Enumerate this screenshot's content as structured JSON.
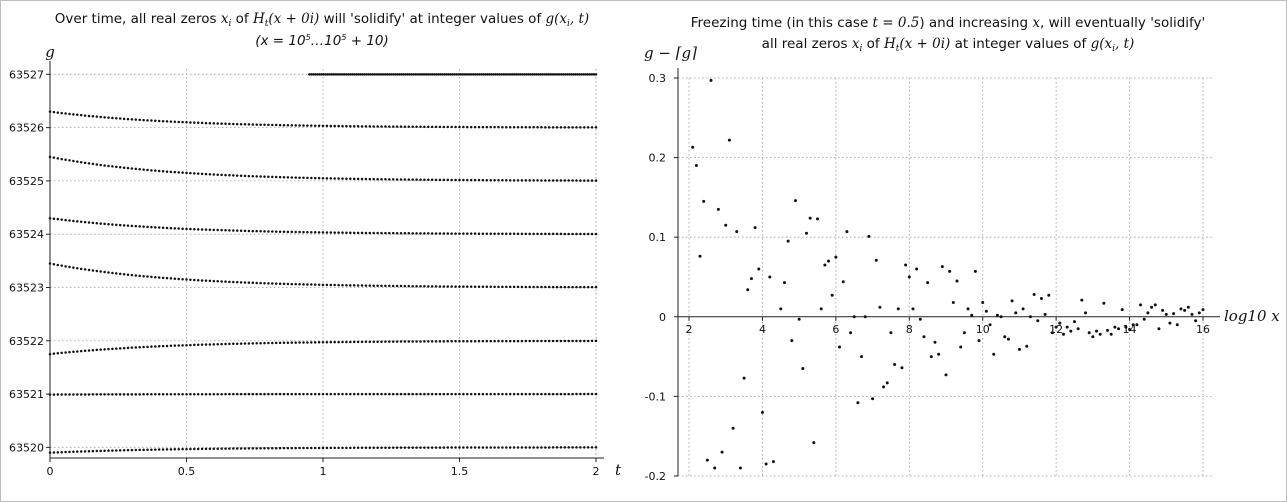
{
  "chart_data": [
    {
      "type": "scatter",
      "title": "Over time, all real zeros x_i of H_t(x+0i) will 'solidify' at integer values of g(x_i,t)",
      "subtitle": "(x = 10^5 ... 10^5 + 10)",
      "xlabel": "t",
      "ylabel": "g",
      "xlim": [
        0,
        2
      ],
      "ylim": [
        63519.8,
        63527.1
      ],
      "xticks": [
        "0",
        "0.5",
        "1",
        "1.5",
        "2"
      ],
      "yticks": [
        "63520",
        "63521",
        "63522",
        "63523",
        "63524",
        "63525",
        "63526",
        "63527"
      ],
      "grid": true,
      "series": [
        {
          "start": 63519.9,
          "end": 63520.0,
          "t_start": 0,
          "t_end": 2
        },
        {
          "start": 63520.99,
          "end": 63521.0,
          "t_start": 0,
          "t_end": 2
        },
        {
          "start": 63521.75,
          "end": 63522.0,
          "t_start": 0,
          "t_end": 2
        },
        {
          "start": 63523.45,
          "end": 63523.0,
          "t_start": 0,
          "t_end": 2
        },
        {
          "start": 63524.3,
          "end": 63524.0,
          "t_start": 0,
          "t_end": 2
        },
        {
          "start": 63525.45,
          "end": 63525.0,
          "t_start": 0,
          "t_end": 2
        },
        {
          "start": 63526.3,
          "end": 63526.0,
          "t_start": 0,
          "t_end": 2
        },
        {
          "start": 63527.0,
          "end": 63527.0,
          "t_start": 0.95,
          "t_end": 2
        }
      ]
    },
    {
      "type": "scatter",
      "title": "Freezing time (in this case t = 0.5) and increasing x, will eventually 'solidify'",
      "subtitle": "all real zeros x_i of H_t(x+0i) at integer values of g(x_i,t)",
      "xlabel": "log10 x",
      "ylabel": "g − ⌈g⌉",
      "xlim": [
        1.7,
        16.3
      ],
      "ylim": [
        -0.2,
        0.3
      ],
      "xticks": [
        "2",
        "4",
        "6",
        "8",
        "10",
        "12",
        "14",
        "16"
      ],
      "yticks": [
        "0.3",
        "0.2",
        "0.1",
        "0",
        "-0.1",
        "-0.2"
      ],
      "grid": true,
      "points": [
        [
          2.1,
          0.213
        ],
        [
          2.2,
          0.19
        ],
        [
          2.3,
          0.076
        ],
        [
          2.4,
          0.145
        ],
        [
          2.5,
          -0.18
        ],
        [
          2.6,
          0.297
        ],
        [
          2.7,
          -0.19
        ],
        [
          2.8,
          0.135
        ],
        [
          2.9,
          -0.17
        ],
        [
          3.0,
          0.115
        ],
        [
          3.1,
          0.222
        ],
        [
          3.2,
          -0.14
        ],
        [
          3.3,
          0.107
        ],
        [
          3.4,
          -0.19
        ],
        [
          3.5,
          -0.077
        ],
        [
          3.6,
          0.034
        ],
        [
          3.7,
          0.048
        ],
        [
          3.8,
          0.112
        ],
        [
          3.9,
          0.06
        ],
        [
          4.0,
          -0.12
        ],
        [
          4.1,
          -0.185
        ],
        [
          4.2,
          0.05
        ],
        [
          4.3,
          -0.182
        ],
        [
          4.5,
          0.01
        ],
        [
          4.6,
          0.043
        ],
        [
          4.7,
          0.095
        ],
        [
          4.8,
          -0.03
        ],
        [
          4.9,
          0.146
        ],
        [
          5.0,
          -0.003
        ],
        [
          5.1,
          -0.065
        ],
        [
          5.2,
          0.105
        ],
        [
          5.3,
          0.124
        ],
        [
          5.4,
          -0.158
        ],
        [
          5.5,
          0.123
        ],
        [
          5.6,
          0.01
        ],
        [
          5.7,
          0.065
        ],
        [
          5.8,
          0.07
        ],
        [
          5.9,
          0.027
        ],
        [
          6.0,
          0.075
        ],
        [
          6.1,
          -0.038
        ],
        [
          6.2,
          0.044
        ],
        [
          6.3,
          0.107
        ],
        [
          6.4,
          -0.02
        ],
        [
          6.5,
          0.0
        ],
        [
          6.6,
          -0.108
        ],
        [
          6.7,
          -0.05
        ],
        [
          6.8,
          0.0
        ],
        [
          6.9,
          0.101
        ],
        [
          7.0,
          -0.103
        ],
        [
          7.1,
          0.071
        ],
        [
          7.2,
          0.012
        ],
        [
          7.3,
          -0.088
        ],
        [
          7.4,
          -0.083
        ],
        [
          7.5,
          -0.02
        ],
        [
          7.6,
          -0.06
        ],
        [
          7.7,
          0.01
        ],
        [
          7.8,
          -0.064
        ],
        [
          7.9,
          0.065
        ],
        [
          8.0,
          0.05
        ],
        [
          8.1,
          0.01
        ],
        [
          8.2,
          0.06
        ],
        [
          8.3,
          -0.003
        ],
        [
          8.4,
          -0.025
        ],
        [
          8.5,
          0.043
        ],
        [
          8.6,
          -0.05
        ],
        [
          8.7,
          -0.032
        ],
        [
          8.8,
          -0.047
        ],
        [
          8.9,
          0.063
        ],
        [
          9.0,
          -0.073
        ],
        [
          9.1,
          0.057
        ],
        [
          9.2,
          0.018
        ],
        [
          9.3,
          0.045
        ],
        [
          9.4,
          -0.038
        ],
        [
          9.5,
          -0.02
        ],
        [
          9.6,
          0.01
        ],
        [
          9.7,
          0.002
        ],
        [
          9.8,
          0.057
        ],
        [
          9.9,
          -0.03
        ],
        [
          10.0,
          0.018
        ],
        [
          10.1,
          0.007
        ],
        [
          10.2,
          -0.01
        ],
        [
          10.3,
          -0.047
        ],
        [
          10.4,
          0.002
        ],
        [
          10.5,
          0.0
        ],
        [
          10.6,
          -0.025
        ],
        [
          10.7,
          -0.028
        ],
        [
          10.8,
          0.02
        ],
        [
          10.9,
          0.005
        ],
        [
          11.0,
          -0.041
        ],
        [
          11.1,
          0.01
        ],
        [
          11.2,
          -0.037
        ],
        [
          11.3,
          0.0
        ],
        [
          11.4,
          0.028
        ],
        [
          11.5,
          -0.005
        ],
        [
          11.6,
          0.023
        ],
        [
          11.7,
          0.003
        ],
        [
          11.8,
          0.027
        ],
        [
          11.9,
          -0.02
        ],
        [
          12.0,
          -0.013
        ],
        [
          12.1,
          -0.008
        ],
        [
          12.2,
          -0.022
        ],
        [
          12.3,
          -0.013
        ],
        [
          12.4,
          -0.018
        ],
        [
          12.5,
          -0.006
        ],
        [
          12.6,
          -0.015
        ],
        [
          12.7,
          0.021
        ],
        [
          12.8,
          0.005
        ],
        [
          12.9,
          -0.02
        ],
        [
          13.0,
          -0.025
        ],
        [
          13.1,
          -0.018
        ],
        [
          13.2,
          -0.022
        ],
        [
          13.3,
          0.017
        ],
        [
          13.4,
          -0.017
        ],
        [
          13.5,
          -0.022
        ],
        [
          13.6,
          -0.013
        ],
        [
          13.7,
          -0.015
        ],
        [
          13.8,
          0.009
        ],
        [
          13.9,
          -0.013
        ],
        [
          14.0,
          -0.016
        ],
        [
          14.1,
          -0.01
        ],
        [
          14.2,
          -0.01
        ],
        [
          14.3,
          0.015
        ],
        [
          14.4,
          -0.003
        ],
        [
          14.5,
          0.005
        ],
        [
          14.6,
          0.012
        ],
        [
          14.7,
          0.015
        ],
        [
          14.8,
          -0.015
        ],
        [
          14.9,
          0.008
        ],
        [
          15.0,
          0.003
        ],
        [
          15.1,
          -0.008
        ],
        [
          15.2,
          0.004
        ],
        [
          15.3,
          -0.01
        ],
        [
          15.4,
          0.01
        ],
        [
          15.5,
          0.008
        ],
        [
          15.6,
          0.012
        ],
        [
          15.7,
          0.003
        ],
        [
          15.8,
          -0.005
        ],
        [
          15.9,
          0.005
        ],
        [
          16.0,
          0.009
        ]
      ]
    }
  ]
}
